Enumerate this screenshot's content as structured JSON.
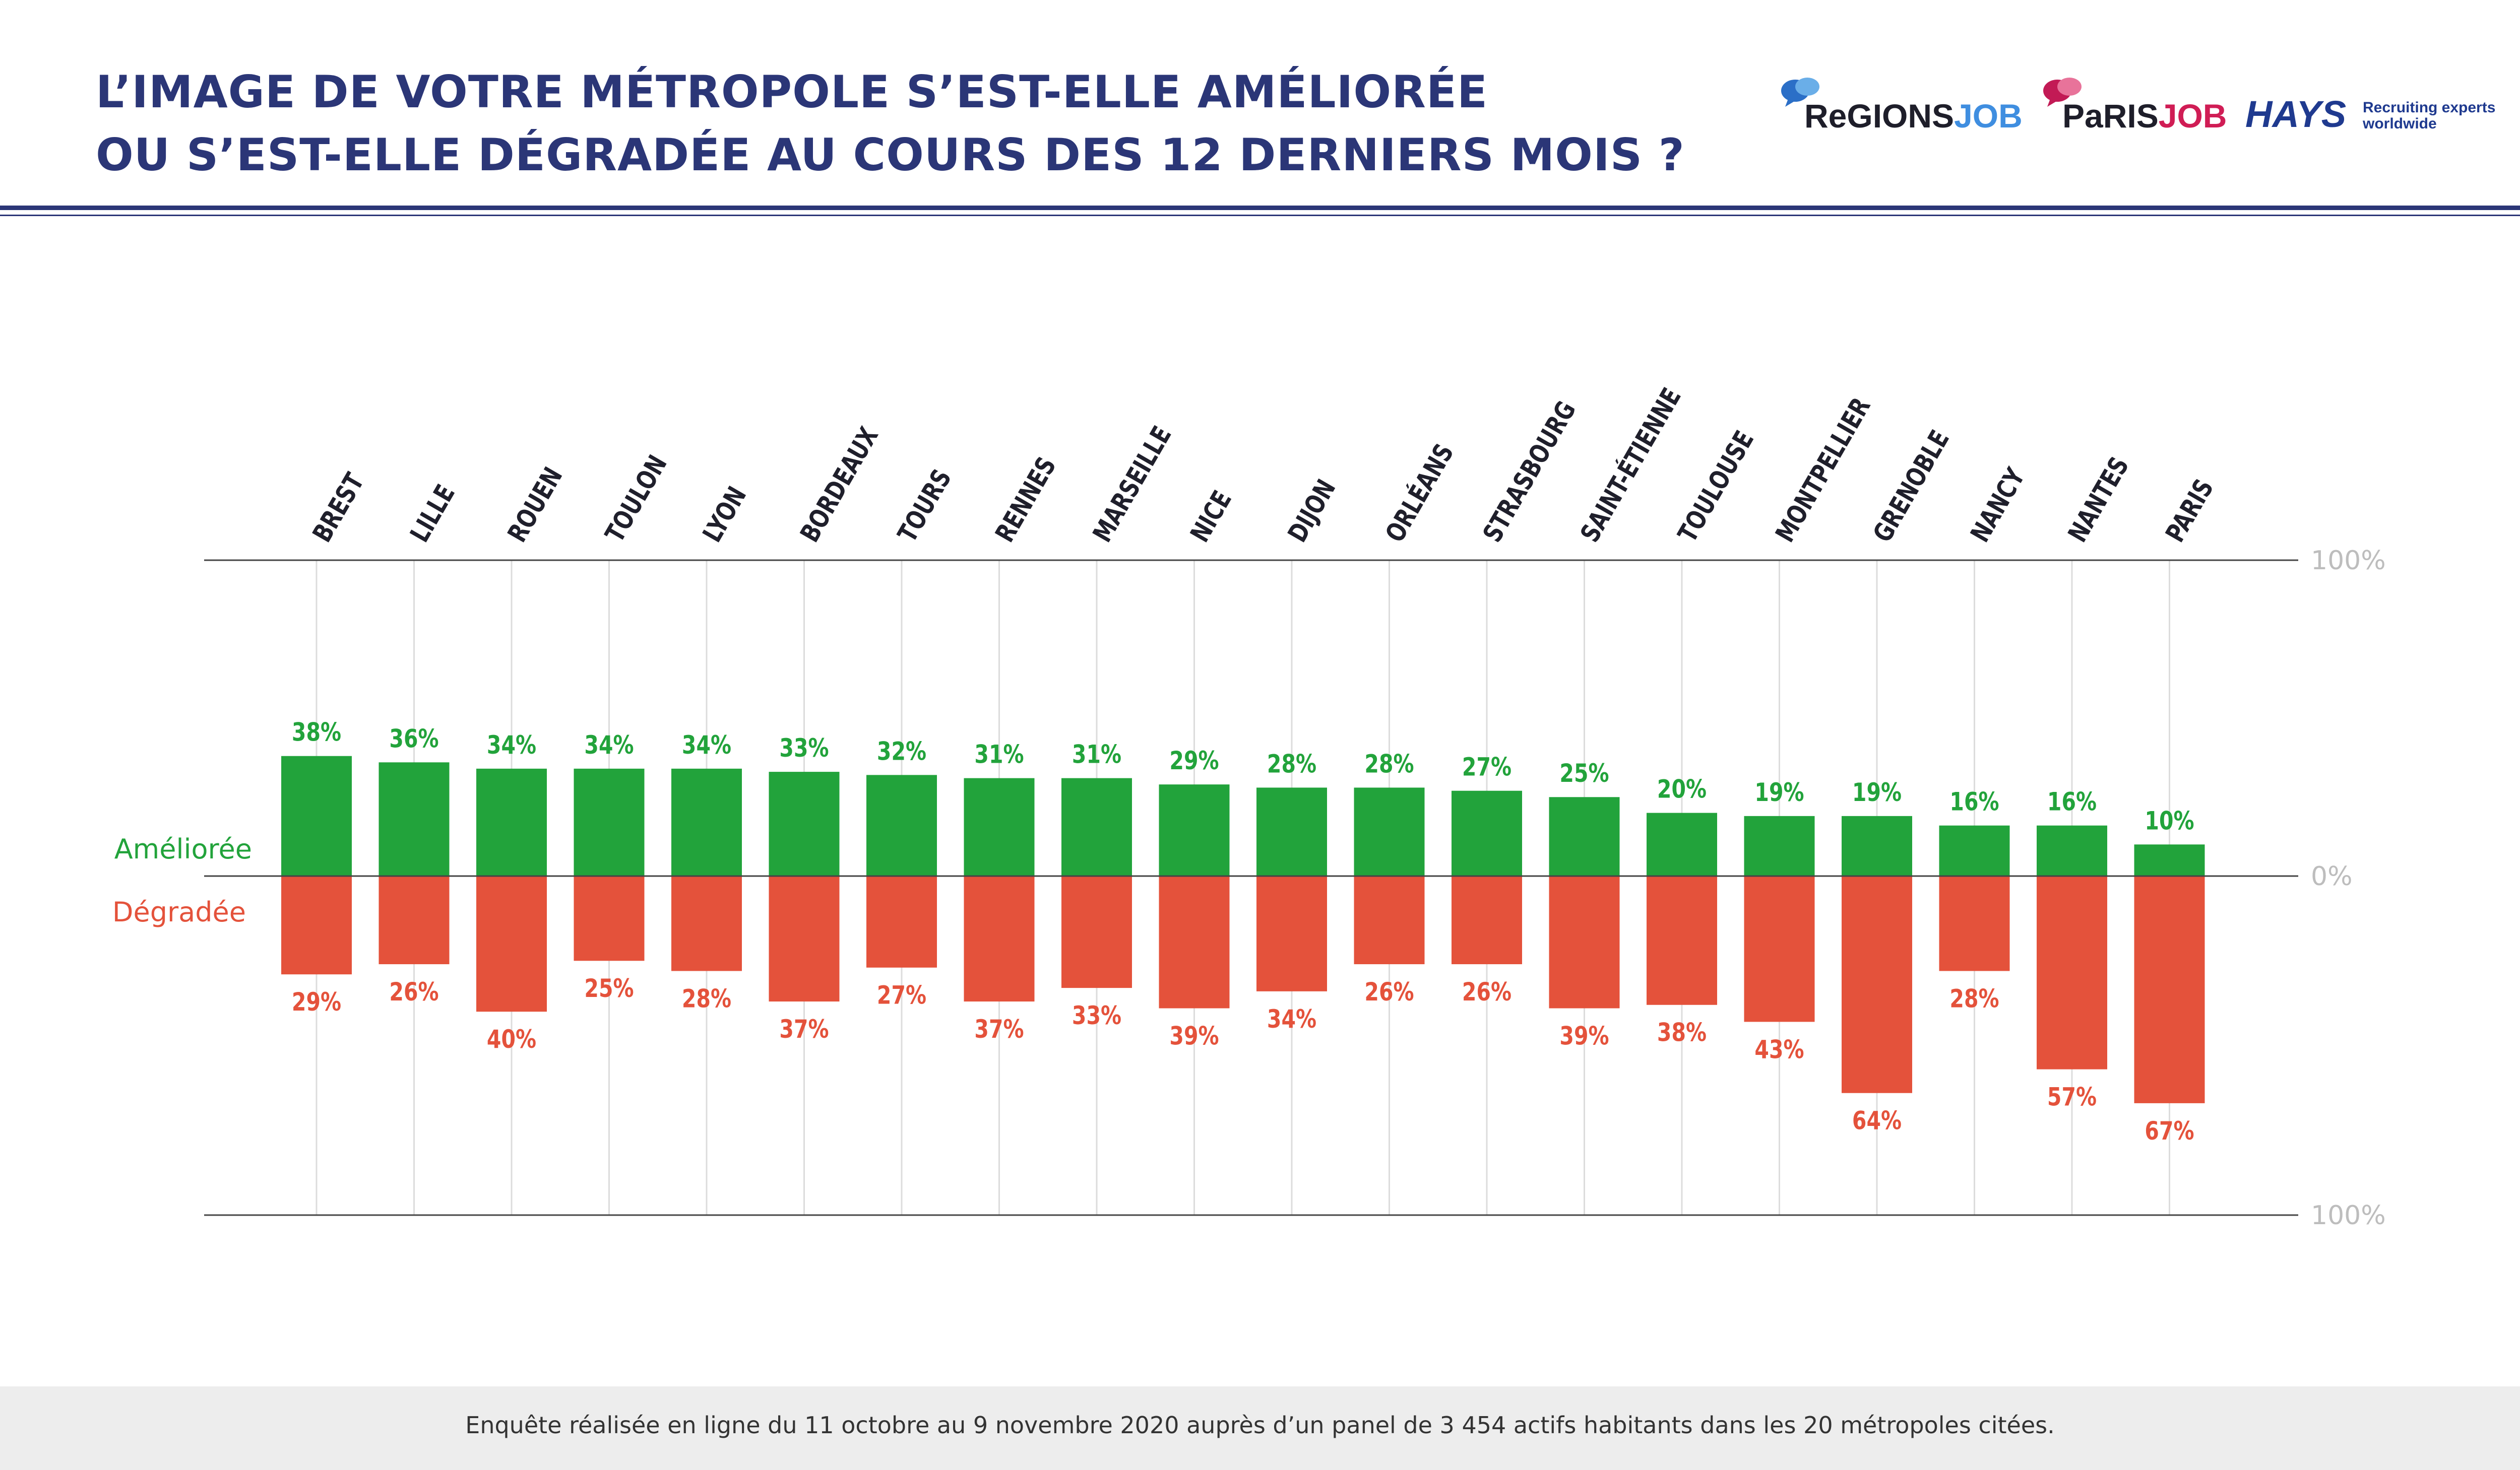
{
  "header": {
    "title_line1": "L’IMAGE DE VOTRE MÉTROPOLE S’EST-ELLE AMÉLIORÉE",
    "title_line2": "OU S’EST-ELLE DÉGRADÉE AU COURS DES 12 DERNIERS MOIS ?"
  },
  "logos": {
    "regionsjob_a": "ReGIONS",
    "regionsjob_b": "JOB",
    "parisjob_a": "PaRIS",
    "parisjob_b": "JOB",
    "hays": "HAYS",
    "hays_tagline_1": "Recruiting experts",
    "hays_tagline_2": "worldwide"
  },
  "footer": {
    "text": "Enquête réalisée en ligne du 11 octobre au 9 novembre 2020 auprès d’un panel de 3 454 actifs habitants dans les 20 métropoles citées."
  },
  "colors": {
    "improved": "#22a33b",
    "degraded": "#e4523b",
    "title": "#2b3677",
    "axis_label": "#bdbdbd"
  },
  "chart_data": {
    "type": "bar",
    "categories": [
      "BREST",
      "LILLE",
      "ROUEN",
      "TOULON",
      "LYON",
      "BORDEAUX",
      "TOURS",
      "RENNES",
      "MARSEILLE",
      "NICE",
      "DIJON",
      "ORLÉANS",
      "STRASBOURG",
      "SAINT-ÉTIENNE",
      "TOULOUSE",
      "MONTPELLIER",
      "GRENOBLE",
      "NANCY",
      "NANTES",
      "PARIS"
    ],
    "series": [
      {
        "name": "Améliorée",
        "color": "#22a33b",
        "values": [
          38,
          36,
          34,
          34,
          34,
          33,
          32,
          31,
          31,
          29,
          28,
          28,
          27,
          25,
          20,
          19,
          19,
          16,
          16,
          10
        ]
      },
      {
        "name": "Dégradée",
        "color": "#e4523b",
        "values": [
          29,
          26,
          40,
          25,
          28,
          37,
          27,
          37,
          33,
          39,
          34,
          26,
          26,
          39,
          38,
          43,
          64,
          28,
          57,
          67
        ]
      }
    ],
    "value_labels": {
      "improved": [
        "38%",
        "36%",
        "34%",
        "34%",
        "34%",
        "33%",
        "32%",
        "31%",
        "31%",
        "29%",
        "28%",
        "28%",
        "27%",
        "25%",
        "20%",
        "19%",
        "19%",
        "16%",
        "16%",
        "10%"
      ],
      "degraded": [
        "29%",
        "26%",
        "40%",
        "25%",
        "28%",
        "37%",
        "27%",
        "37%",
        "33%",
        "39%",
        "34%",
        "26%",
        "26%",
        "39%",
        "38%",
        "43%",
        "64%",
        "28%",
        "57%",
        "67%"
      ]
    },
    "axis_ticks": {
      "top": "100%",
      "zero": "0%",
      "bottom": "100%"
    },
    "ylim": [
      -100,
      100
    ],
    "legend": "left"
  }
}
